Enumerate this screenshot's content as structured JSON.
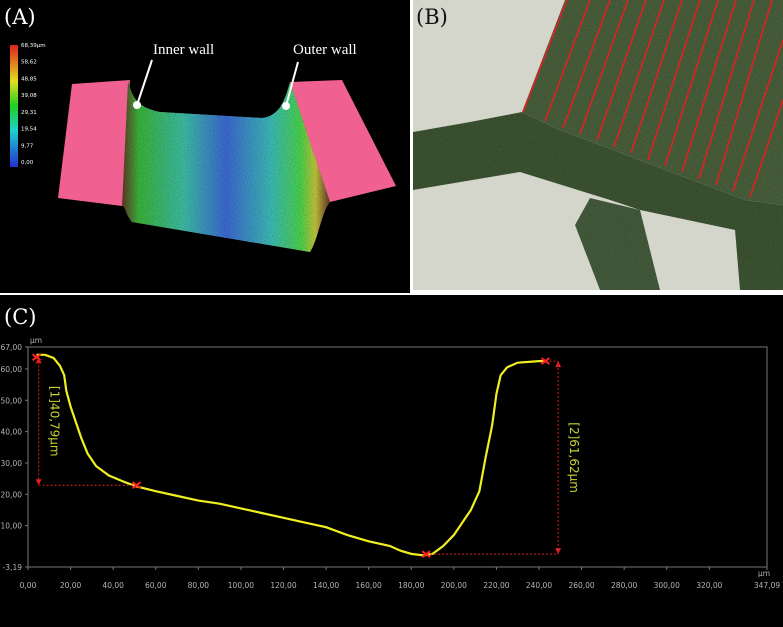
{
  "panels": {
    "a": "(A)",
    "b": "(B)",
    "c": "(C)"
  },
  "surface": {
    "scale_labels": [
      "68,39µm",
      "58,62",
      "48,85",
      "39,08",
      "29,31",
      "19,54",
      "9,77",
      "0,00"
    ],
    "annotations": [
      "Inner wall",
      "Outer wall"
    ]
  },
  "chart_data": {
    "type": "line",
    "x_unit": "µm",
    "y_unit": "µm",
    "x": [
      4,
      8,
      12,
      15,
      17,
      18,
      20,
      22,
      25,
      28,
      32,
      38,
      45,
      51,
      60,
      70,
      80,
      90,
      100,
      110,
      120,
      130,
      140,
      150,
      160,
      170,
      175,
      180,
      186,
      190,
      195,
      200,
      205,
      208,
      212,
      215,
      218,
      220,
      222,
      225,
      230,
      240,
      243
    ],
    "series": [
      {
        "color": "#f0f020",
        "values": [
          64.5,
          64.5,
          63.5,
          61,
          58,
          53,
          48,
          44,
          38,
          33,
          29,
          26,
          24,
          22.5,
          21,
          19.5,
          18,
          17,
          15.5,
          14,
          12.5,
          11,
          9.5,
          7,
          5,
          3.5,
          2,
          1,
          0.5,
          1,
          3.5,
          7,
          12,
          15,
          21,
          32,
          42,
          52,
          58,
          60.5,
          62,
          62.5,
          62.5
        ]
      }
    ],
    "xlim": [
      0,
      347.09
    ],
    "ylim": [
      -3.19,
      67
    ],
    "xticks": [
      {
        "value": 0,
        "label": "0,00"
      },
      {
        "value": 20,
        "label": "20,00"
      },
      {
        "value": 40,
        "label": "40,00"
      },
      {
        "value": 60,
        "label": "60,00"
      },
      {
        "value": 80,
        "label": "80,00"
      },
      {
        "value": 100,
        "label": "100,00"
      },
      {
        "value": 120,
        "label": "120,00"
      },
      {
        "value": 140,
        "label": "140,00"
      },
      {
        "value": 160,
        "label": "160,00"
      },
      {
        "value": 180,
        "label": "180,00"
      },
      {
        "value": 200,
        "label": "200,00"
      },
      {
        "value": 220,
        "label": "220,00"
      },
      {
        "value": 240,
        "label": "240,00"
      },
      {
        "value": 260,
        "label": "260,00"
      },
      {
        "value": 280,
        "label": "280,00"
      },
      {
        "value": 300,
        "label": "300,00"
      },
      {
        "value": 320,
        "label": "320,00"
      },
      {
        "value": 347.09,
        "label": "347,09"
      }
    ],
    "yticks": [
      {
        "value": -3.19,
        "label": "-3,19"
      },
      {
        "value": 10,
        "label": "10,00"
      },
      {
        "value": 20,
        "label": "20,00"
      },
      {
        "value": 30,
        "label": "30,00"
      },
      {
        "value": 40,
        "label": "40,00"
      },
      {
        "value": 50,
        "label": "50,00"
      },
      {
        "value": 60,
        "label": "60,00"
      },
      {
        "value": 67,
        "label": "67,00"
      }
    ],
    "measurements": [
      {
        "label": "[1]40,79µm",
        "x": [
          4,
          51
        ],
        "y": [
          63.7,
          22.9
        ],
        "line_x": 5
      },
      {
        "label": "[2]61,62µm",
        "x": [
          187,
          243
        ],
        "y": [
          0.9,
          62.5
        ],
        "line_x": 249
      }
    ]
  }
}
